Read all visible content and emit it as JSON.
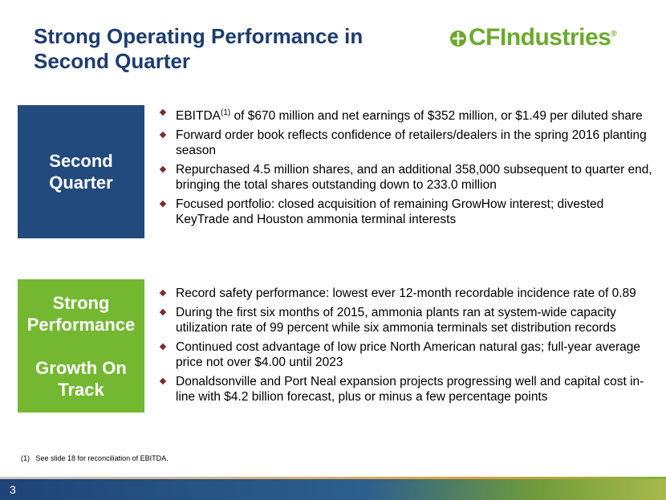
{
  "header": {
    "title_lines": [
      "Strong Operating Performance in",
      "Second Quarter"
    ],
    "logo": {
      "text": "CFIndustries",
      "mark": "®"
    }
  },
  "sections": [
    {
      "label_lines": [
        "Second",
        "Quarter"
      ],
      "bullets": [
        {
          "text": "EBITDA",
          "superscript": "(1)",
          "rest": " of $670 million and net earnings of $352 million, or $1.49 per diluted share"
        },
        {
          "text": "Forward order book reflects confidence of retailers/dealers in the spring 2016 planting season"
        },
        {
          "text": "Repurchased 4.5 million shares, and an additional 358,000 subsequent to quarter end, bringing the total shares outstanding down to 233.0 million"
        },
        {
          "text": "Focused portfolio: closed acquisition of remaining GrowHow interest; divested KeyTrade and Houston ammonia terminal interests"
        }
      ]
    },
    {
      "label_lines": [
        "Strong",
        "Performance",
        "Growth On",
        "Track"
      ],
      "bullets": [
        {
          "text": "Record safety performance: lowest ever 12-month recordable incidence rate of 0.89"
        },
        {
          "text": "During the first six months of 2015, ammonia plants ran at system-wide capacity utilization rate of 99 percent while six ammonia terminals set distribution records"
        },
        {
          "text": "Continued cost advantage of low price North American natural gas; full-year average price not over $4.00 until 2023"
        },
        {
          "text": "Donaldsonville and Port Neal expansion projects progressing well and capital cost in-line with $4.2 billion forecast, plus or minus a few percentage points"
        }
      ]
    }
  ],
  "footnote": {
    "marker": "(1)",
    "text": "See slide 18 for reconciliation of EBITDA."
  },
  "page_number": "3"
}
